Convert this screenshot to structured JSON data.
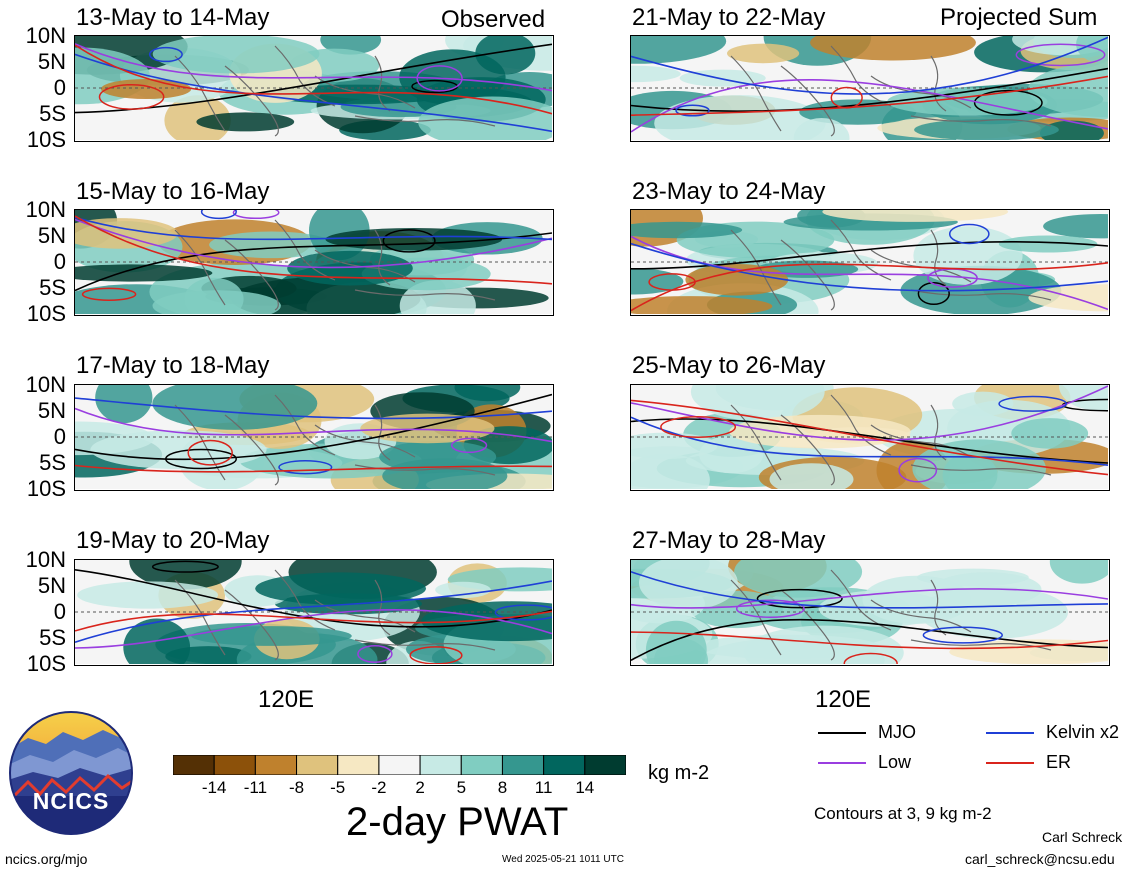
{
  "left_header": "Observed",
  "right_header": "Projected Sum",
  "latitude_labels": [
    "10N",
    "5N",
    "0",
    "5S",
    "10S"
  ],
  "longitude_label": "120E",
  "left_panels": [
    {
      "title": "13-May to 14-May"
    },
    {
      "title": "15-May to 16-May"
    },
    {
      "title": "17-May to 18-May"
    },
    {
      "title": "19-May to 20-May"
    }
  ],
  "right_panels": [
    {
      "title": "21-May to 22-May"
    },
    {
      "title": "23-May to 24-May"
    },
    {
      "title": "25-May to 26-May"
    },
    {
      "title": "27-May to 28-May"
    }
  ],
  "colorbar": {
    "title": "2-day PWAT",
    "units": "kg m-2",
    "tick_labels": [
      "-14",
      "-11",
      "-8",
      "-5",
      "-2",
      "2",
      "5",
      "8",
      "11",
      "14"
    ],
    "colors": [
      "#543005",
      "#8c510a",
      "#bf812d",
      "#dfc27d",
      "#f6e8c3",
      "#f5f5f5",
      "#c7eae5",
      "#80cdc1",
      "#35978f",
      "#01665e",
      "#003c30"
    ]
  },
  "legend": {
    "items": [
      {
        "label": "MJO",
        "color": "#000000"
      },
      {
        "label": "Kelvin x2",
        "color": "#1f3fd6"
      },
      {
        "label": "Low",
        "color": "#9a3ee0"
      },
      {
        "label": "ER",
        "color": "#d9241c"
      }
    ],
    "contours_note": "Contours at 3, 9 kg m-2"
  },
  "logo": {
    "text": "NCICS"
  },
  "footer": {
    "url": "ncics.org/mjo",
    "timestamp": "Wed 2025-05-21 1011 UTC",
    "author": "Carl Schreck",
    "email": "carl_schreck@ncsu.edu"
  }
}
